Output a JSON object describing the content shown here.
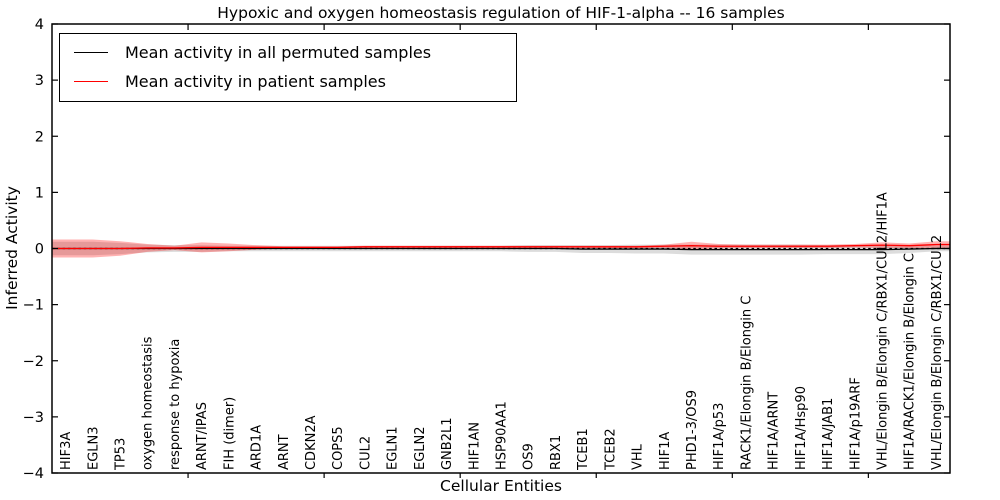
{
  "chart_data": {
    "type": "line",
    "title": "Hypoxic and oxygen homeostasis regulation of HIF-1-alpha -- 16 samples",
    "xlabel": "Cellular Entities",
    "ylabel": "Inferred Activity",
    "ylim": [
      -4,
      4
    ],
    "xlim": [
      0,
      33
    ],
    "yticks": [
      -4,
      -3,
      -2,
      -1,
      0,
      1,
      2,
      3,
      4
    ],
    "xticks": [
      5,
      10,
      15,
      20,
      25,
      30
    ],
    "grid": false,
    "legend_position": "upper-left",
    "zero_line": {
      "value": 0,
      "style": "dashed",
      "color": "#000000"
    },
    "categories": [
      "HIF3A",
      "EGLN3",
      "TP53",
      "oxygen homeostasis",
      "response to hypoxia",
      "ARNT/IPAS",
      "FIH (dimer)",
      "ARD1A",
      "ARNT",
      "CDKN2A",
      "COPS5",
      "CUL2",
      "EGLN1",
      "EGLN2",
      "GNB2L1",
      "HIF1AN",
      "HSP90AA1",
      "OS9",
      "RBX1",
      "TCEB1",
      "TCEB2",
      "VHL",
      "HIF1A",
      "PHD1-3/OS9",
      "HIF1A/p53",
      "RACK1/Elongin B/Elongin C",
      "HIF1A/ARNT",
      "HIF1A/Hsp90",
      "HIF1A/JAB1",
      "HIF1A/p19ARF",
      "VHL/Elongin B/Elongin C/RBX1/CUL2/HIF1A",
      "HIF1A/RACK1/Elongin B/Elongin C",
      "VHL/Elongin B/Elongin C/RBX1/CUL2"
    ],
    "series": [
      {
        "name": "Mean activity in all permuted samples",
        "color": "#000000",
        "band_color": "rgba(128,128,128,0.28)",
        "values": [
          0,
          0,
          0,
          0,
          0,
          0,
          0,
          0,
          0,
          0,
          0,
          0,
          0,
          0,
          0,
          0,
          0,
          0,
          0,
          -0.01,
          -0.01,
          -0.01,
          -0.01,
          -0.02,
          -0.02,
          -0.02,
          -0.02,
          -0.02,
          -0.02,
          -0.02,
          -0.02,
          -0.01,
          0
        ],
        "band_halfwidth": [
          0.12,
          0.12,
          0.1,
          0.07,
          0.06,
          0.06,
          0.05,
          0.05,
          0.05,
          0.05,
          0.05,
          0.05,
          0.05,
          0.05,
          0.05,
          0.05,
          0.05,
          0.06,
          0.06,
          0.07,
          0.07,
          0.08,
          0.08,
          0.09,
          0.09,
          0.09,
          0.09,
          0.09,
          0.08,
          0.08,
          0.08,
          0.07,
          0.05
        ]
      },
      {
        "name": "Mean activity in patient samples",
        "color": "#ff0000",
        "band_color": "rgba(255,0,0,0.30)",
        "values": [
          0,
          0,
          0,
          0.01,
          0.01,
          0.02,
          0.02,
          0.02,
          0.02,
          0.02,
          0.02,
          0.03,
          0.03,
          0.03,
          0.03,
          0.03,
          0.03,
          0.03,
          0.03,
          0.03,
          0.03,
          0.03,
          0.04,
          0.05,
          0.04,
          0.04,
          0.04,
          0.04,
          0.04,
          0.05,
          0.06,
          0.05,
          0.07
        ],
        "band_halfwidth": [
          0.16,
          0.16,
          0.13,
          0.07,
          0.04,
          0.09,
          0.07,
          0.04,
          0.02,
          0.02,
          0.02,
          0.02,
          0.02,
          0.02,
          0.02,
          0.02,
          0.02,
          0.02,
          0.02,
          0.02,
          0.02,
          0.02,
          0.03,
          0.07,
          0.04,
          0.03,
          0.03,
          0.03,
          0.03,
          0.03,
          0.05,
          0.04,
          0.06
        ]
      }
    ]
  }
}
